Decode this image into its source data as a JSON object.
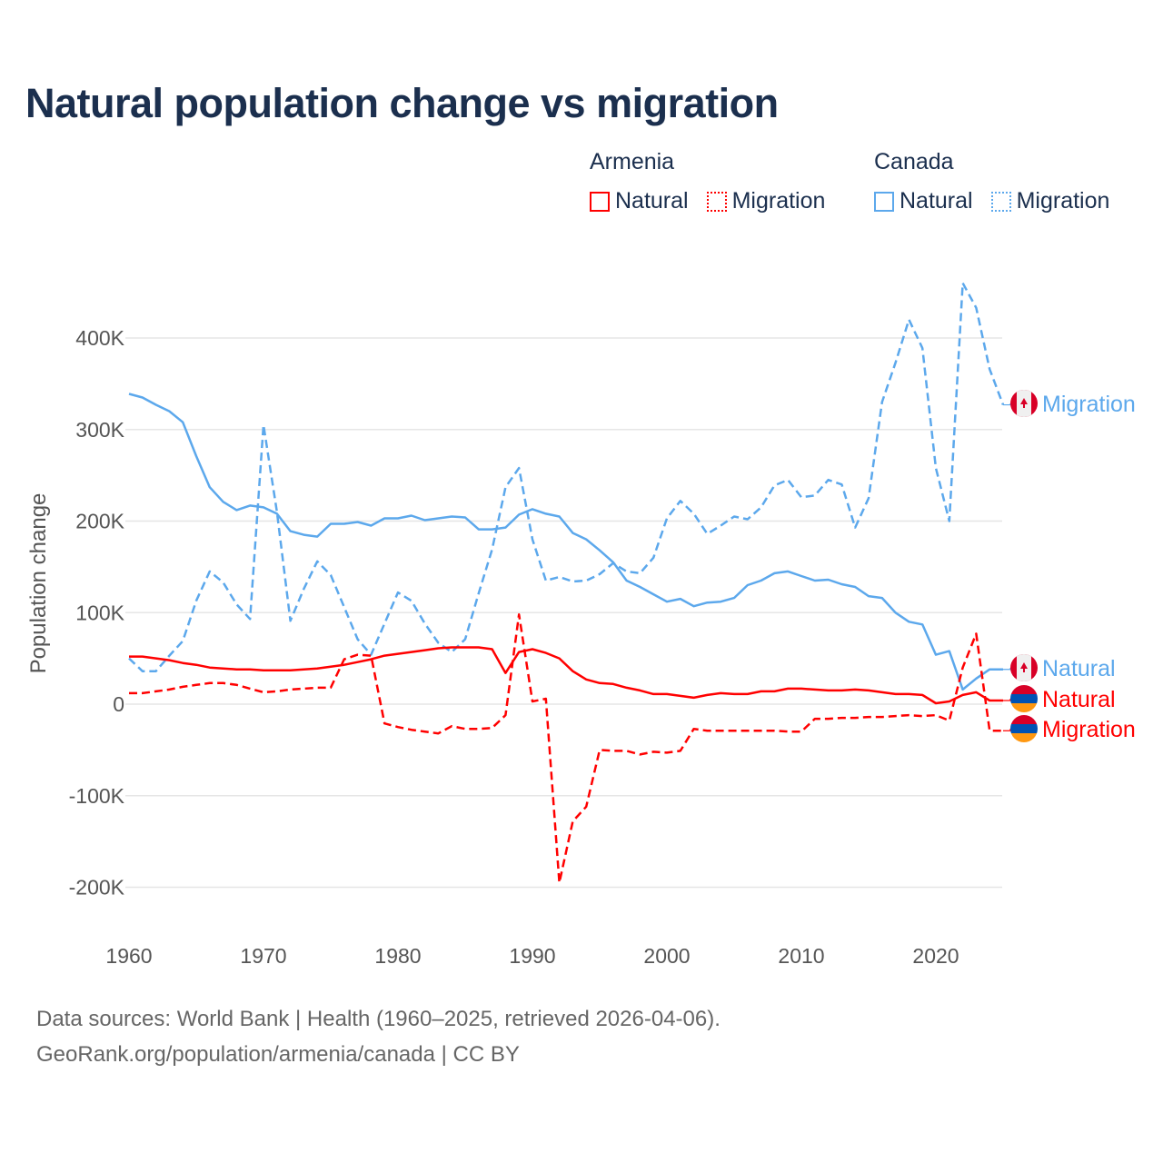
{
  "title": "Natural population change vs migration",
  "legend": {
    "groups": [
      {
        "name": "Armenia",
        "items": [
          {
            "label": "Natural"
          },
          {
            "label": "Migration"
          }
        ]
      },
      {
        "name": "Canada",
        "items": [
          {
            "label": "Natural"
          },
          {
            "label": "Migration"
          }
        ]
      }
    ]
  },
  "footer": {
    "line1": "Data sources: World Bank | Health (1960–2025, retrieved 2026-04-06).",
    "line2": "GeoRank.org/population/armenia/canada | CC BY"
  },
  "colors": {
    "armenia": "#ff0000",
    "canada": "#5ca8ec",
    "title": "#1b2f4e",
    "grid": "#e6e6e6"
  },
  "chart_data": {
    "type": "line",
    "title": "Natural population change vs migration",
    "xlabel": "",
    "ylabel": "Population change",
    "xlim": [
      1960,
      2025
    ],
    "ylim": [
      -200000,
      460000
    ],
    "x_ticks": [
      {
        "value": 1960,
        "label": "1960"
      },
      {
        "value": 1970,
        "label": "1970"
      },
      {
        "value": 1980,
        "label": "1980"
      },
      {
        "value": 1990,
        "label": "1990"
      },
      {
        "value": 2000,
        "label": "2000"
      },
      {
        "value": 2010,
        "label": "2010"
      },
      {
        "value": 2020,
        "label": "2020"
      }
    ],
    "y_ticks": [
      {
        "value": 400,
        "label": "400K"
      },
      {
        "value": 300,
        "label": "300K"
      },
      {
        "value": 200,
        "label": "200K"
      },
      {
        "value": 100,
        "label": "100K"
      },
      {
        "value": 0,
        "label": "0"
      },
      {
        "value": -100,
        "label": "-100K"
      },
      {
        "value": -200,
        "label": "-200K"
      }
    ],
    "grid": true,
    "units": "thousands",
    "x_start": 1960,
    "series": [
      {
        "name": "Canada Migration",
        "country": "Canada",
        "kind": "Migration",
        "end_label": "Migration",
        "color": "#5ca8ec",
        "dashed": true,
        "values": [
          50,
          36,
          36,
          53,
          69,
          113,
          145,
          133,
          109,
          93,
          305,
          210,
          91,
          126,
          156,
          141,
          106,
          71,
          54,
          88,
          122,
          113,
          88,
          67,
          57,
          71,
          121,
          169,
          237,
          258,
          180,
          135,
          139,
          134,
          135,
          142,
          154,
          145,
          143,
          160,
          203,
          222,
          208,
          186,
          195,
          205,
          202,
          215,
          239,
          245,
          226,
          228,
          245,
          240,
          193,
          225,
          330,
          373,
          420,
          389,
          258,
          200,
          460,
          433,
          366,
          327
        ]
      },
      {
        "name": "Canada Natural",
        "country": "Canada",
        "kind": "Natural",
        "end_label": "Natural",
        "color": "#5ca8ec",
        "dashed": false,
        "values": [
          339,
          335,
          327,
          320,
          308,
          271,
          237,
          221,
          212,
          217,
          215,
          208,
          189,
          185,
          183,
          197,
          197,
          199,
          195,
          203,
          203,
          206,
          201,
          203,
          205,
          204,
          191,
          191,
          193,
          207,
          213,
          208,
          205,
          187,
          180,
          168,
          155,
          135,
          128,
          120,
          112,
          115,
          107,
          111,
          112,
          116,
          130,
          135,
          143,
          145,
          140,
          135,
          136,
          131,
          128,
          118,
          116,
          100,
          90,
          87,
          54,
          58,
          16,
          28,
          38,
          38
        ]
      },
      {
        "name": "Armenia Natural",
        "country": "Armenia",
        "kind": "Natural",
        "end_label": "Natural",
        "color": "#ff0000",
        "dashed": false,
        "values": [
          52,
          52,
          50,
          48,
          45,
          43,
          40,
          39,
          38,
          38,
          37,
          37,
          37,
          38,
          39,
          41,
          43,
          46,
          49,
          53,
          55,
          57,
          59,
          61,
          62,
          62,
          62,
          60,
          34,
          57,
          60,
          56,
          50,
          36,
          27,
          23,
          22,
          18,
          15,
          11,
          11,
          9,
          7,
          10,
          12,
          11,
          11,
          14,
          14,
          17,
          17,
          16,
          15,
          15,
          16,
          15,
          13,
          11,
          11,
          10,
          1,
          3,
          10,
          13,
          4,
          4
        ]
      },
      {
        "name": "Armenia Migration",
        "country": "Armenia",
        "kind": "Migration",
        "end_label": "Migration",
        "color": "#ff0000",
        "dashed": true,
        "values": [
          12,
          12,
          14,
          16,
          19,
          21,
          23,
          23,
          21,
          17,
          13,
          14,
          16,
          17,
          18,
          18,
          49,
          54,
          53,
          -21,
          -25,
          -28,
          -30,
          -32,
          -24,
          -27,
          -27,
          -26,
          -12,
          98,
          3,
          6,
          -195,
          -128,
          -112,
          -50,
          -51,
          -51,
          -55,
          -52,
          -53,
          -51,
          -27,
          -29,
          -29,
          -29,
          -29,
          -29,
          -29,
          -30,
          -30,
          -16,
          -16,
          -15,
          -15,
          -14,
          -14,
          -13,
          -12,
          -13,
          -12,
          -18,
          40,
          77,
          -29,
          -29
        ]
      }
    ]
  }
}
